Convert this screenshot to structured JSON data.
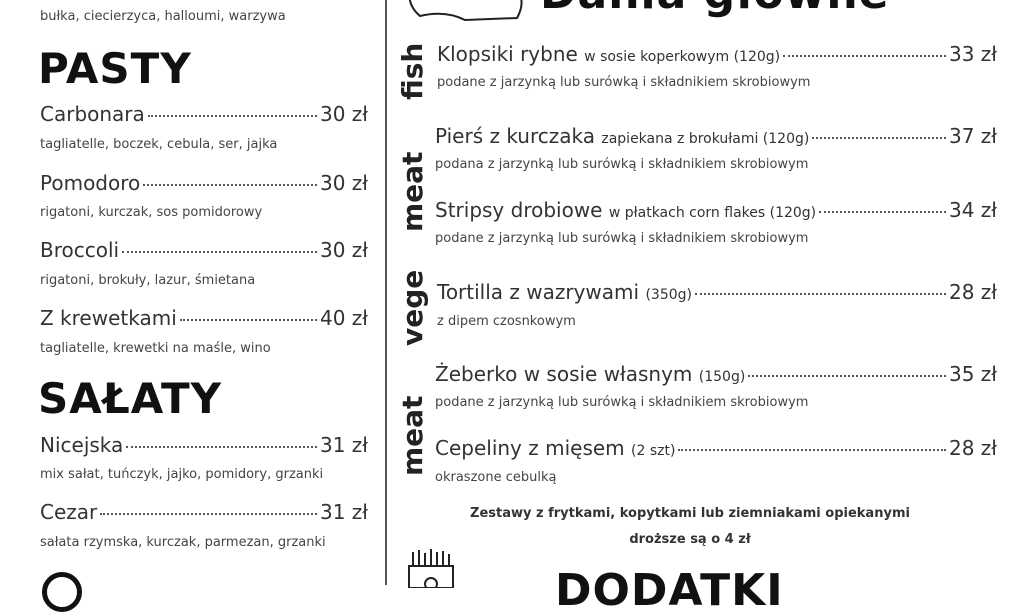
{
  "left": {
    "top_desc": "bułka, ciecierzyca, halloumi, warzywa",
    "sections": [
      {
        "title": "PASTY",
        "items": [
          {
            "name": "Carbonara",
            "price": "30 zł",
            "desc": "tagliatelle, boczek, cebula, ser, jajka"
          },
          {
            "name": "Pomodoro",
            "price": "30 zł",
            "desc": "rigatoni, kurczak, sos pomidorowy"
          },
          {
            "name": "Broccoli",
            "price": "30 zł",
            "desc": "rigatoni, brokuły, lazur, śmietana"
          },
          {
            "name": "Z krewetkami",
            "price": "40 zł",
            "desc": "tagliatelle, krewetki na maśle, wino"
          }
        ]
      },
      {
        "title": "SAŁATY",
        "items": [
          {
            "name": "Nicejska",
            "price": "31 zł",
            "desc": "mix sałat, tuńczyk, jajko, pomidory, grzanki"
          },
          {
            "name": "Cezar",
            "price": "31 zł",
            "desc": "sałata rzymska, kurczak, parmezan, grzanki"
          }
        ]
      }
    ]
  },
  "right": {
    "title": "Dania główne",
    "categories": [
      "fish",
      "meat",
      "vege",
      "meat"
    ],
    "items": [
      {
        "name": "Klopsiki rybne",
        "extra": "w sosie koperkowym (120g)",
        "price": "33 zł",
        "desc": "podane z jarzynką lub surówką i składnikiem skrobiowym"
      },
      {
        "name": "Pierś z kurczaka",
        "extra": "zapiekana z brokułami (120g)",
        "price": "37 zł",
        "desc": "podana z jarzynką lub surówką i składnikiem skrobiowym"
      },
      {
        "name": "Stripsy drobiowe",
        "extra": "w płatkach corn flakes (120g)",
        "price": "34 zł",
        "desc": "podane z jarzynką lub surówką i składnikiem skrobiowym"
      },
      {
        "name": "Tortilla z wazrywami",
        "extra": "(350g)",
        "price": "28 zł",
        "desc": "z dipem czosnkowym"
      },
      {
        "name": "Żeberko w sosie własnym",
        "extra": "(150g)",
        "price": "35 zł",
        "desc": "podane z jarzynką lub surówką i składnikiem skrobiowym"
      },
      {
        "name": "Cepeliny z mięsem",
        "extra": "(2 szt)",
        "price": "28 zł",
        "desc": "okraszone cebulką"
      }
    ],
    "note_line1": "Zestawy z frytkami, kopytkami lub ziemniakami opiekanymi",
    "note_line2": "droższe są o 4 zł",
    "next_title": "DODATKI"
  },
  "icons": [
    "meat-board-icon",
    "fries-icon"
  ]
}
